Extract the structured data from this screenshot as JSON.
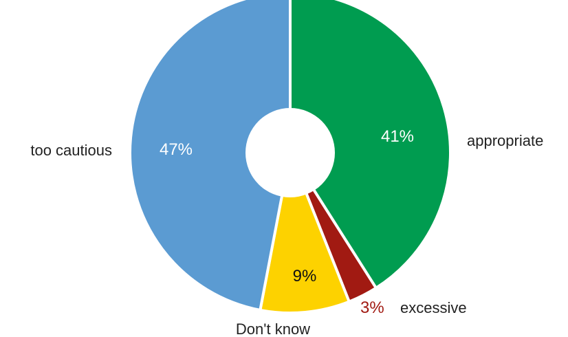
{
  "chart_data": {
    "type": "pie",
    "donut": true,
    "slices": [
      {
        "label": "appropriate",
        "value": 41,
        "pct_text": "41%",
        "color": "#009c50",
        "pct_text_color": "#ffffff"
      },
      {
        "label": "excessive",
        "value": 3,
        "pct_text": "3%",
        "color": "#a11a12",
        "pct_text_color": "#a11a12"
      },
      {
        "label": "Don't know",
        "value": 9,
        "pct_text": "9%",
        "color": "#fdd200",
        "pct_text_color": "#111111"
      },
      {
        "label": "too cautious",
        "value": 47,
        "pct_text": "47%",
        "color": "#5b9bd2",
        "pct_text_color": "#ffffff"
      }
    ],
    "start": "12 o'clock",
    "direction": "clockwise",
    "legend": "none"
  }
}
